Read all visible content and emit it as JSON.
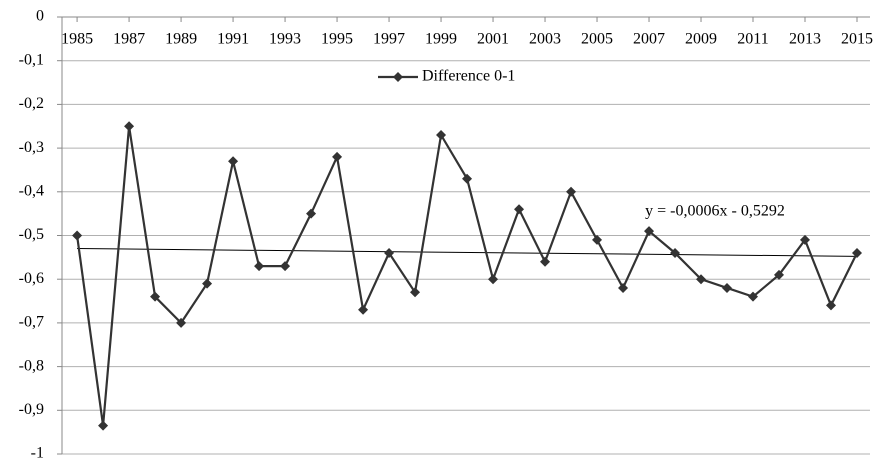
{
  "chart_data": {
    "type": "line",
    "x": [
      1985,
      1986,
      1987,
      1988,
      1989,
      1990,
      1991,
      1992,
      1993,
      1994,
      1995,
      1996,
      1997,
      1998,
      1999,
      2000,
      2001,
      2002,
      2003,
      2004,
      2005,
      2006,
      2007,
      2008,
      2009,
      2010,
      2011,
      2012,
      2013,
      2014,
      2015
    ],
    "series": [
      {
        "name": "Difference 0-1",
        "color": "#333333",
        "values": [
          -0.5,
          -0.935,
          -0.25,
          -0.64,
          -0.7,
          -0.61,
          -0.33,
          -0.57,
          -0.57,
          -0.45,
          -0.32,
          -0.67,
          -0.54,
          -0.63,
          -0.27,
          -0.37,
          -0.6,
          -0.44,
          -0.56,
          -0.4,
          -0.51,
          -0.62,
          -0.49,
          -0.54,
          -0.6,
          -0.62,
          -0.64,
          -0.59,
          -0.51,
          -0.66,
          -0.54
        ]
      }
    ],
    "trendline": {
      "label": "y = -0,0006x - 0,5292",
      "slope": -0.0006,
      "intercept": -0.5292
    },
    "xlim": [
      1984.42,
      2015.5
    ],
    "xticks": [
      1985,
      1987,
      1989,
      1991,
      1993,
      1995,
      1997,
      1999,
      2001,
      2003,
      2005,
      2007,
      2009,
      2011,
      2013,
      2015
    ],
    "ylim": [
      -1,
      0
    ],
    "yticks": [
      0,
      {
        "value": -0.1,
        "label": "-0,1"
      },
      {
        "value": -0.2,
        "label": "-0,2"
      },
      {
        "value": -0.3,
        "label": "-0,3"
      },
      {
        "value": -0.4,
        "label": "-0,4"
      },
      {
        "value": -0.5,
        "label": "-0,5"
      },
      {
        "value": -0.6,
        "label": "-0,6"
      },
      {
        "value": -0.7,
        "label": "-0,7"
      },
      {
        "value": -0.8,
        "label": "-0,8"
      },
      {
        "value": -0.9,
        "label": "-0,9"
      },
      -1
    ],
    "grid": true,
    "legend": "top"
  }
}
